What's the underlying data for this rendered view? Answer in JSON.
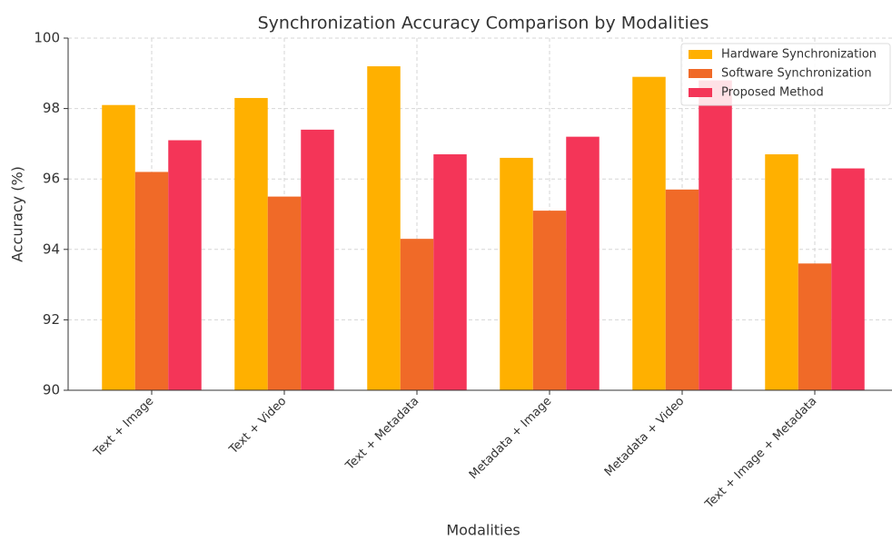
{
  "chart_data": {
    "type": "bar",
    "title": "Synchronization Accuracy Comparison by Modalities",
    "x_label": "Modalities",
    "y_label": "Accuracy (%)",
    "categories": [
      "Text + Image",
      "Text + Video",
      "Text + Metadata",
      "Metadata + Image",
      "Metadata + Video",
      "Text + Image + Metadata"
    ],
    "series": [
      {
        "name": "Hardware Synchronization",
        "color": "#ffb000",
        "values": [
          98.1,
          98.3,
          99.2,
          96.6,
          98.9,
          96.7
        ]
      },
      {
        "name": "Software Synchronization",
        "color": "#f06a28",
        "values": [
          96.2,
          95.5,
          94.3,
          95.1,
          95.7,
          93.6
        ]
      },
      {
        "name": "Proposed Method",
        "color": "#f43558",
        "values": [
          97.1,
          97.4,
          96.7,
          97.2,
          98.8,
          96.3
        ]
      }
    ],
    "ylim": [
      90,
      100
    ],
    "yticks": [
      90,
      92,
      94,
      96,
      98,
      100
    ],
    "grid": true,
    "legend": "upper right"
  }
}
